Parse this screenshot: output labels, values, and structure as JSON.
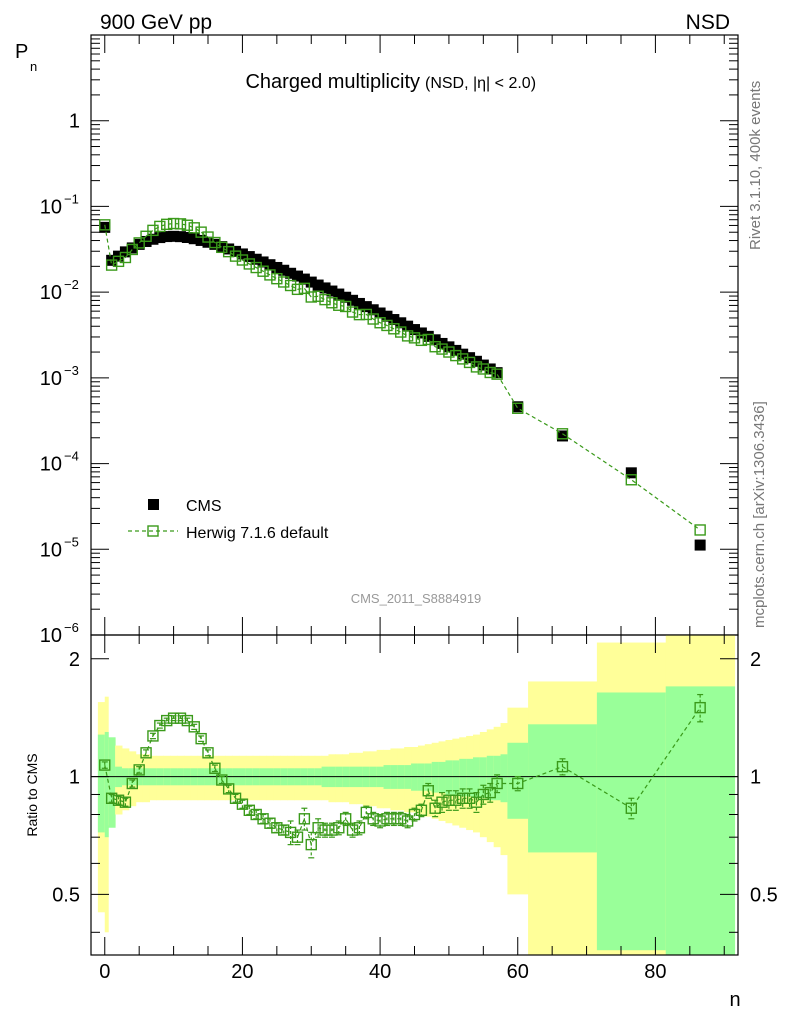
{
  "header": {
    "energy_label": "900 GeV pp",
    "process_label": "NSD"
  },
  "side_labels": {
    "rivet": "Rivet 3.1.10,  400k events",
    "mcplots": "mcplots.cern.ch [arXiv:1306.3436]"
  },
  "chart_data": {
    "type": "scatter",
    "title": "Charged multiplicity",
    "subtitle": "(NSD, |η| < 2.0)",
    "analysis_id": "CMS_2011_S8884919",
    "xlabel": "n",
    "ylabel": "P",
    "ylabel_sub": "n",
    "ratio_ylabel": "Ratio to CMS",
    "xlim": [
      -2,
      92
    ],
    "ylim": [
      1e-06,
      10
    ],
    "yscale": "log",
    "ratio_ylim": [
      0.35,
      2.3
    ],
    "xticks": [
      0,
      20,
      40,
      60,
      80
    ],
    "ymain_ticks": [
      {
        "value": 1,
        "label": "1"
      },
      {
        "value": 0.1,
        "label": "10",
        "exp": "−1"
      },
      {
        "value": 0.01,
        "label": "10",
        "exp": "−2"
      },
      {
        "value": 0.001,
        "label": "10",
        "exp": "−3"
      },
      {
        "value": 0.0001,
        "label": "10",
        "exp": "−4"
      },
      {
        "value": 1e-05,
        "label": "10",
        "exp": "−5"
      },
      {
        "value": 1e-06,
        "label": "10",
        "exp": "−6"
      }
    ],
    "ratio_ticks": [
      {
        "value": 0.5,
        "label": "0.5"
      },
      {
        "value": 1,
        "label": "1"
      },
      {
        "value": 2,
        "label": "2"
      }
    ],
    "legend": {
      "position": "bottom-left",
      "entries": [
        {
          "name": "CMS",
          "marker": "filled-square"
        },
        {
          "name": "Herwig 7.1.6 default",
          "marker": "open-square-dashed"
        }
      ]
    },
    "colors": {
      "data": "#000000",
      "mc": "#3a9a1a",
      "band_inner": "#99ff99",
      "band_outer": "#ffff99"
    },
    "series": [
      {
        "name": "CMS",
        "x": [
          0,
          1,
          2,
          3,
          4,
          5,
          6,
          7,
          8,
          9,
          10,
          11,
          12,
          13,
          14,
          15,
          16,
          17,
          18,
          19,
          20,
          21,
          22,
          23,
          24,
          25,
          26,
          27,
          28,
          29,
          30,
          31,
          32,
          33,
          34,
          35,
          36,
          37,
          38,
          39,
          40,
          41,
          42,
          43,
          44,
          45,
          46,
          47,
          48,
          49,
          50,
          51,
          52,
          53,
          54,
          55,
          56,
          57,
          60,
          66.5,
          76.5,
          86.5
        ],
        "y": [
          0.057,
          0.0235,
          0.0263,
          0.0295,
          0.0328,
          0.0361,
          0.039,
          0.0414,
          0.0433,
          0.0445,
          0.0448,
          0.0444,
          0.0434,
          0.042,
          0.0401,
          0.0382,
          0.0361,
          0.034,
          0.0319,
          0.0299,
          0.0279,
          0.026,
          0.0242,
          0.0225,
          0.0209,
          0.0194,
          0.018,
          0.0166,
          0.0154,
          0.0142,
          0.0131,
          0.0121,
          0.0112,
          0.0103,
          0.0095,
          0.00872,
          0.00803,
          0.00738,
          0.00678,
          0.00623,
          0.00571,
          0.00524,
          0.00479,
          0.00439,
          0.00401,
          0.00366,
          0.00334,
          0.00305,
          0.00278,
          0.00252,
          0.0023,
          0.00209,
          0.00189,
          0.00172,
          0.00156,
          0.00141,
          0.00127,
          0.00115,
          0.00046,
          0.00021,
          7.8e-05,
          1.12e-05
        ]
      },
      {
        "name": "Herwig 7.1.6 default",
        "x": [
          0,
          1,
          2,
          3,
          4,
          5,
          6,
          7,
          8,
          9,
          10,
          11,
          12,
          13,
          14,
          15,
          16,
          17,
          18,
          19,
          20,
          21,
          22,
          23,
          24,
          25,
          26,
          27,
          28,
          29,
          30,
          31,
          32,
          33,
          34,
          35,
          36,
          37,
          38,
          39,
          40,
          41,
          42,
          43,
          44,
          45,
          46,
          47,
          48,
          49,
          50,
          51,
          52,
          53,
          54,
          55,
          56,
          57,
          60,
          66.5,
          76.5,
          86.5
        ],
        "ratio": [
          1.07,
          0.88,
          0.87,
          0.86,
          0.96,
          1.04,
          1.15,
          1.27,
          1.35,
          1.39,
          1.41,
          1.41,
          1.39,
          1.34,
          1.25,
          1.15,
          1.05,
          0.98,
          0.93,
          0.88,
          0.85,
          0.82,
          0.8,
          0.78,
          0.76,
          0.74,
          0.73,
          0.72,
          0.7,
          0.78,
          0.67,
          0.74,
          0.73,
          0.73,
          0.74,
          0.78,
          0.73,
          0.74,
          0.81,
          0.78,
          0.77,
          0.78,
          0.78,
          0.78,
          0.77,
          0.8,
          0.82,
          0.92,
          0.83,
          0.86,
          0.87,
          0.87,
          0.88,
          0.88,
          0.86,
          0.9,
          0.91,
          0.96,
          0.96,
          1.06,
          0.83,
          1.5
        ],
        "ratio_err": [
          0.02,
          0.02,
          0.02,
          0.02,
          0.02,
          0.02,
          0.02,
          0.02,
          0.02,
          0.02,
          0.02,
          0.02,
          0.02,
          0.02,
          0.02,
          0.02,
          0.02,
          0.02,
          0.02,
          0.02,
          0.02,
          0.02,
          0.02,
          0.02,
          0.02,
          0.02,
          0.02,
          0.05,
          0.03,
          0.05,
          0.05,
          0.04,
          0.03,
          0.03,
          0.03,
          0.03,
          0.03,
          0.03,
          0.03,
          0.03,
          0.03,
          0.03,
          0.03,
          0.03,
          0.03,
          0.03,
          0.03,
          0.04,
          0.04,
          0.05,
          0.05,
          0.05,
          0.05,
          0.05,
          0.05,
          0.05,
          0.05,
          0.05,
          0.04,
          0.05,
          0.05,
          0.12
        ]
      }
    ],
    "uncertainty_bands": {
      "edges": [
        -1,
        0,
        0.5,
        1.5,
        2.5,
        3.5,
        4.5,
        5.5,
        6.5,
        7.5,
        8.5,
        9.5,
        10.5,
        11.5,
        12.5,
        13.5,
        14.5,
        15.5,
        16.5,
        17.5,
        18.5,
        19.5,
        20.5,
        21.5,
        22.5,
        23.5,
        24.5,
        25.5,
        26.5,
        27.5,
        28.5,
        29.5,
        30.5,
        31.5,
        32.5,
        33.5,
        34.5,
        35.5,
        36.5,
        37.5,
        38.5,
        39.5,
        40.5,
        41.5,
        42.5,
        43.5,
        44.5,
        45.5,
        46.5,
        47.5,
        48.5,
        49.5,
        50.5,
        51.5,
        52.5,
        53.5,
        54.5,
        55.5,
        56.5,
        57.5,
        58.5,
        61.5,
        71.5,
        81.5,
        91.5
      ],
      "inner": [
        0.28,
        0.3,
        0.26,
        0.06,
        0.05,
        0.05,
        0.05,
        0.05,
        0.05,
        0.05,
        0.05,
        0.05,
        0.05,
        0.05,
        0.05,
        0.05,
        0.05,
        0.05,
        0.05,
        0.05,
        0.05,
        0.05,
        0.05,
        0.05,
        0.05,
        0.05,
        0.05,
        0.05,
        0.05,
        0.05,
        0.05,
        0.05,
        0.05,
        0.06,
        0.06,
        0.06,
        0.06,
        0.06,
        0.06,
        0.06,
        0.06,
        0.06,
        0.07,
        0.07,
        0.07,
        0.07,
        0.08,
        0.08,
        0.08,
        0.09,
        0.09,
        0.1,
        0.1,
        0.11,
        0.11,
        0.12,
        0.12,
        0.13,
        0.13,
        0.14,
        0.22,
        0.36,
        0.64,
        0.7
      ],
      "outer": [
        0.55,
        0.6,
        0.25,
        0.2,
        0.18,
        0.16,
        0.14,
        0.14,
        0.13,
        0.13,
        0.13,
        0.13,
        0.13,
        0.13,
        0.13,
        0.13,
        0.13,
        0.13,
        0.13,
        0.13,
        0.13,
        0.13,
        0.13,
        0.13,
        0.13,
        0.13,
        0.13,
        0.13,
        0.13,
        0.13,
        0.13,
        0.13,
        0.13,
        0.13,
        0.14,
        0.14,
        0.14,
        0.15,
        0.15,
        0.16,
        0.16,
        0.17,
        0.17,
        0.18,
        0.18,
        0.19,
        0.19,
        0.2,
        0.21,
        0.22,
        0.23,
        0.24,
        0.25,
        0.26,
        0.27,
        0.28,
        0.3,
        0.32,
        0.34,
        0.37,
        0.5,
        0.75,
        1.2,
        1.3
      ]
    }
  }
}
